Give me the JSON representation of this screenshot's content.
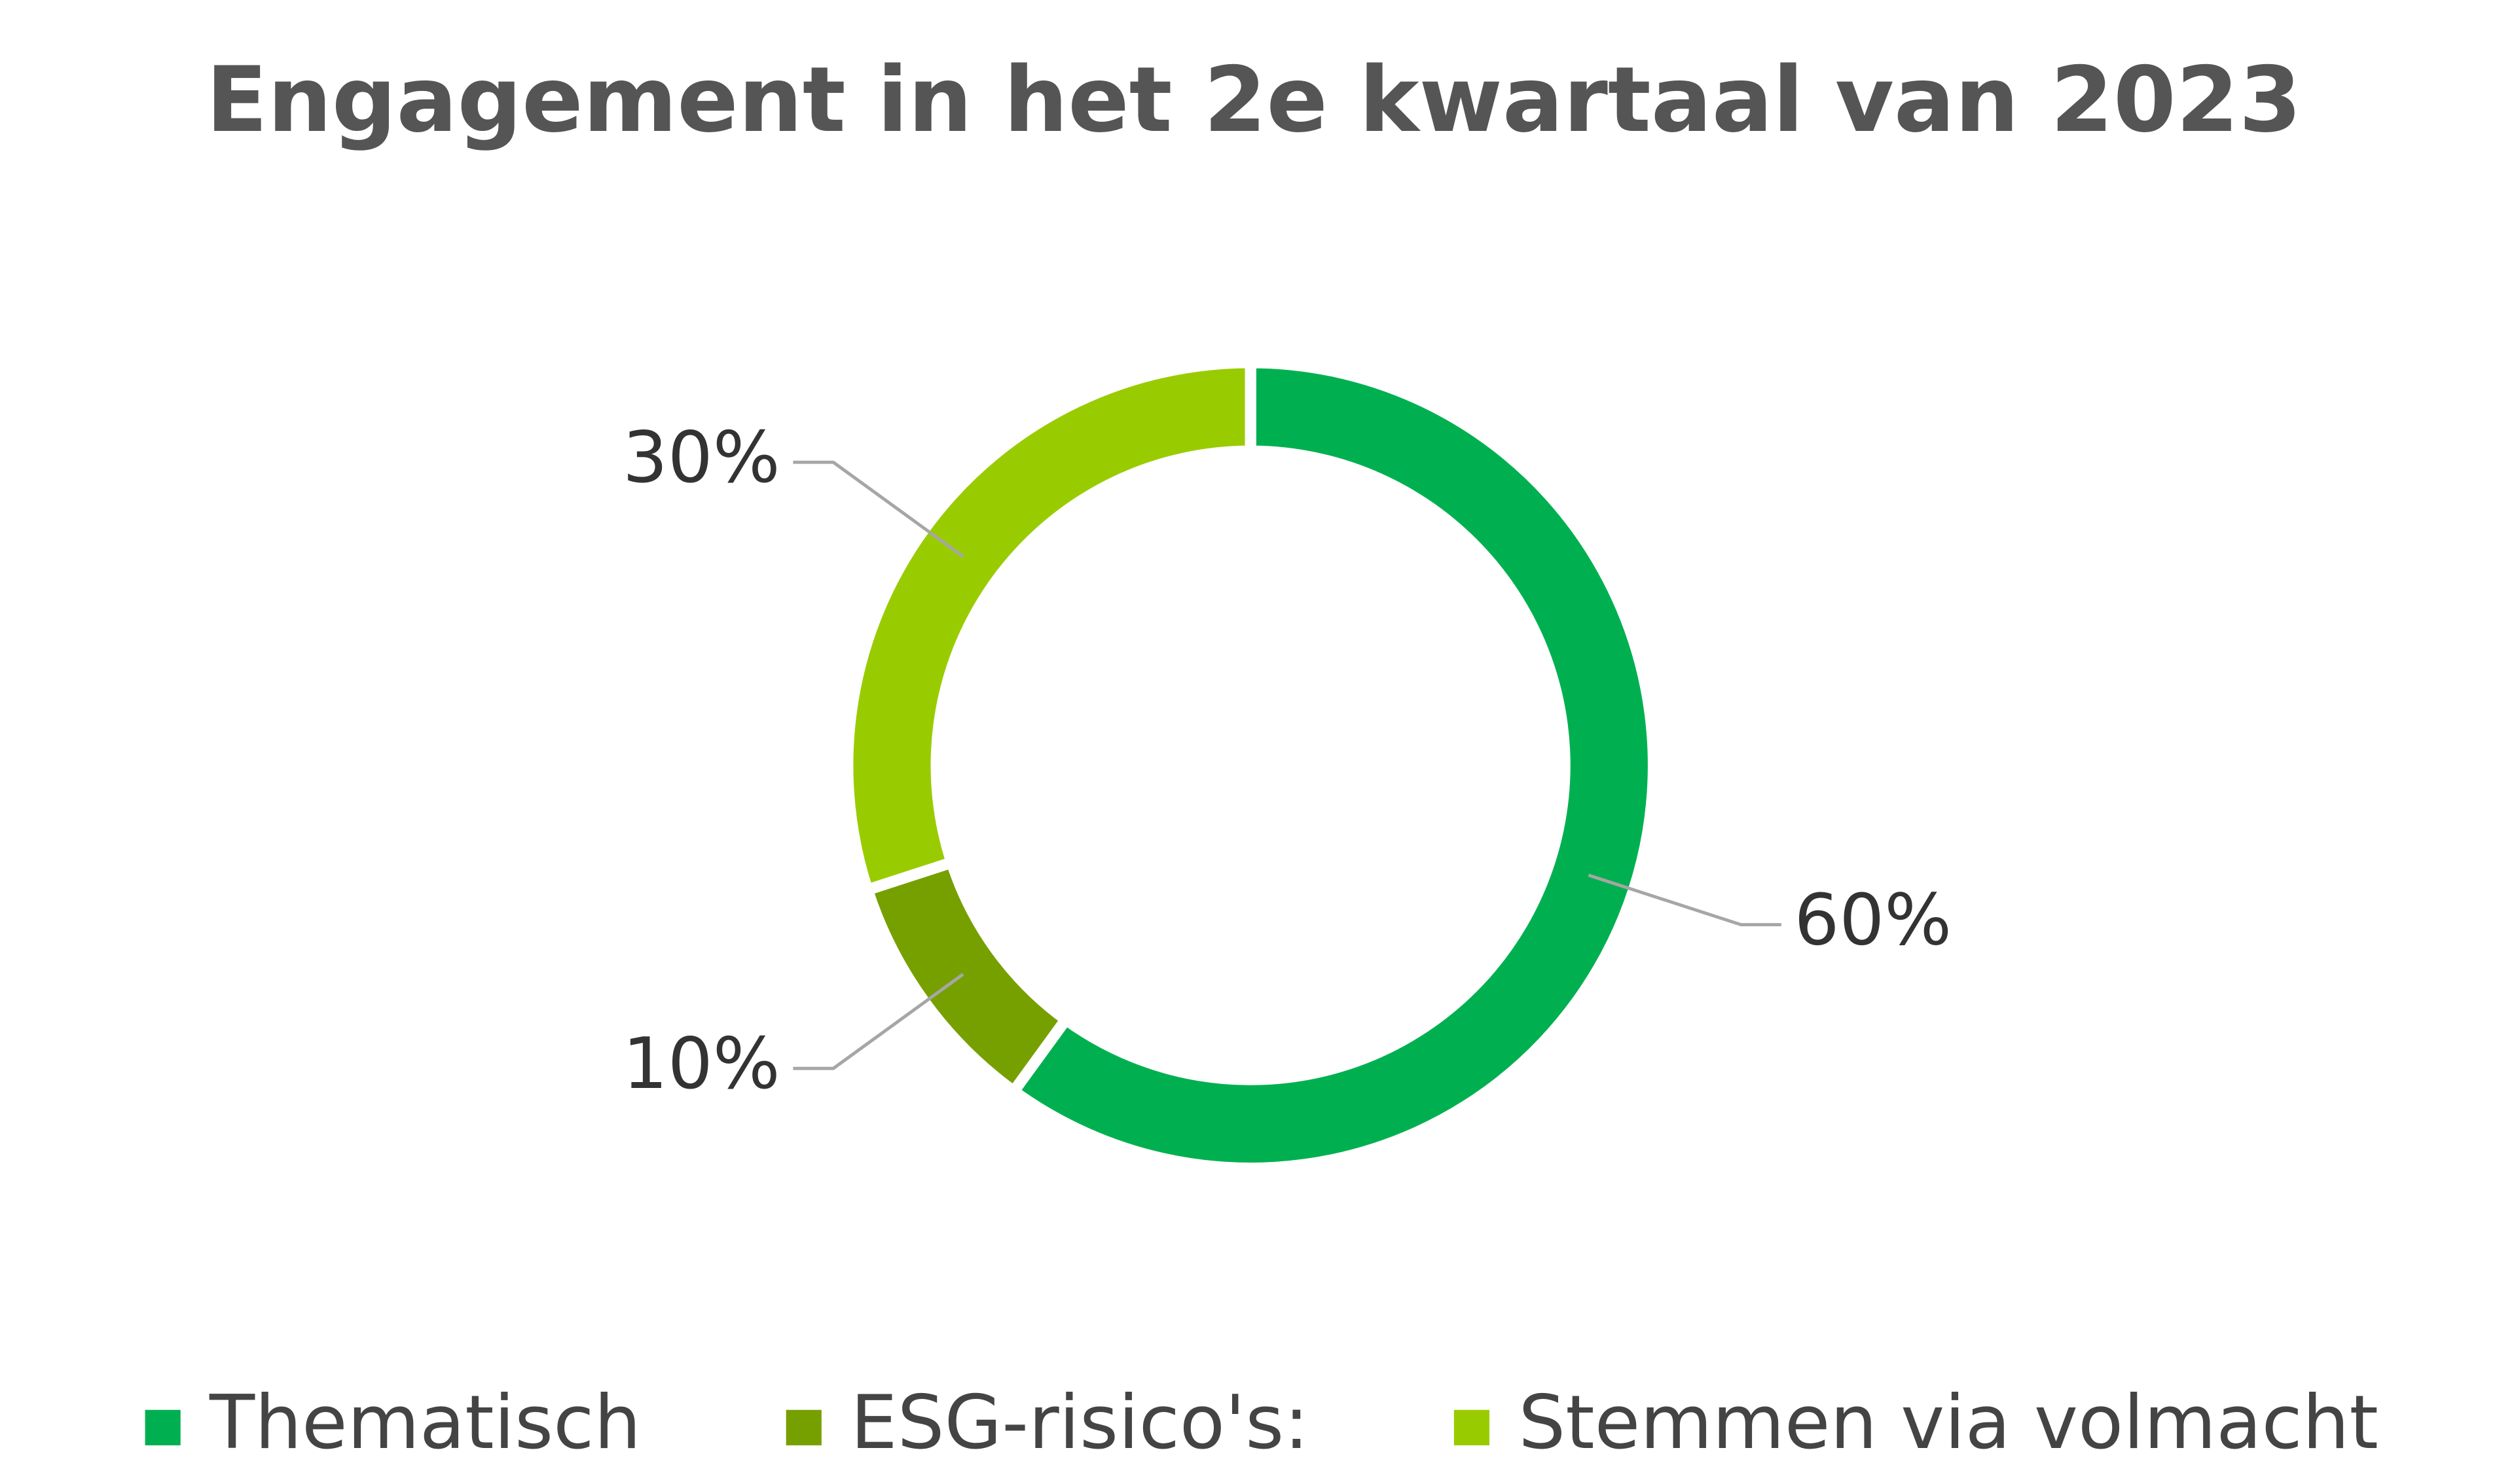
{
  "chart_data": {
    "type": "pie",
    "donut": true,
    "title": "Engagement in het 2e kwartaal van 2023",
    "categories": [
      "Thematisch",
      "ESG-risico's:",
      "Stemmen via volmacht"
    ],
    "values": [
      60,
      10,
      30
    ],
    "value_labels": [
      "60%",
      "10%",
      "30%"
    ],
    "colors": [
      "#00b050",
      "#76a000",
      "#99cc00"
    ],
    "legend": "bottom"
  }
}
